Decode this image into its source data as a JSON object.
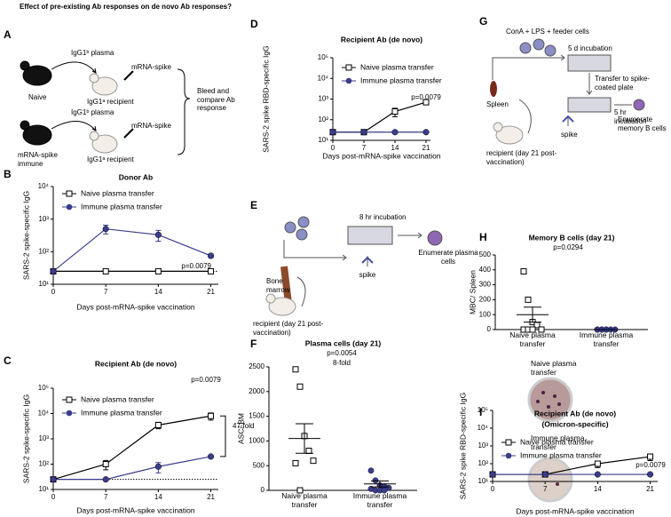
{
  "header": {
    "question": "Effect of pre-existing Ab responses on de novo Ab responses?"
  },
  "panel_labels": [
    "A",
    "B",
    "C",
    "D",
    "E",
    "F",
    "G",
    "H",
    "I"
  ],
  "diagram_a": {
    "labels": [
      "IgG1ᵇ plasma",
      "mRNA-spike",
      "Naive",
      "IgG1ᵃ recipient",
      "IgG1ᵇ plasma",
      "mRNA-spike",
      "mRNA-spike immune",
      "IgG1ᵃ recipient",
      "Bleed and compare Ab response"
    ]
  },
  "diagram_e": {
    "labels": [
      "8 hr incubation",
      "Enumerate plasma cells",
      "Bone marrow",
      "spike",
      "recipient (day 21 post-vaccination)"
    ]
  },
  "diagram_g": {
    "labels": [
      "ConA + LPS + feeder cells",
      "5 d incubation",
      "Transfer to spike-coated plate",
      "5 hr incubation",
      "Spleen",
      "Enumerate memory B cells",
      "spike",
      "recipient (day 21 post-vaccination)"
    ]
  },
  "chart_data": [
    {
      "type": "line",
      "title": "Donor Ab",
      "xlabel": "Days post-mRNA-spike vaccination",
      "ylabel": "SARS-2 spike-specific IgG",
      "log_y": true,
      "x": [
        0,
        7,
        14,
        21
      ],
      "xlim": [
        0,
        22
      ],
      "xticks": [
        0,
        7,
        14,
        21
      ],
      "ylim": [
        10,
        10000
      ],
      "yticks": [
        {
          "value": 10,
          "label": "10¹"
        },
        {
          "value": 100,
          "label": "10²"
        },
        {
          "value": 1000,
          "label": "10³"
        },
        {
          "value": 10000,
          "label": "10⁴"
        }
      ],
      "reference_line": 25,
      "series": [
        {
          "name": "Naive plasma transfer",
          "marker": "square",
          "color": "#000000",
          "values": [
            25,
            25,
            25,
            25
          ],
          "errors": [
            null,
            null,
            null,
            null
          ]
        },
        {
          "name": "Immune plasma transfer",
          "marker": "circle",
          "color": "#3a3c8c",
          "values": [
            25,
            500,
            330,
            75
          ],
          "errors": [
            null,
            150,
            120,
            10
          ]
        }
      ],
      "annotations": [
        "p=0.0079"
      ]
    },
    {
      "type": "line",
      "title": "Recipient Ab (de novo)",
      "xlabel": "Days post-mRNA-spike vaccination",
      "ylabel": "SARS-2 spike-specific IgG",
      "log_y": true,
      "x": [
        0,
        7,
        14,
        21
      ],
      "xlim": [
        0,
        22
      ],
      "xticks": [
        0,
        7,
        14,
        21
      ],
      "ylim": [
        10,
        100000
      ],
      "yticks": [
        {
          "value": 10,
          "label": "10¹"
        },
        {
          "value": 100,
          "label": "10²"
        },
        {
          "value": 1000,
          "label": "10³"
        },
        {
          "value": 10000,
          "label": "10⁴"
        },
        {
          "value": 100000,
          "label": "10⁵"
        }
      ],
      "reference_line": 25,
      "series": [
        {
          "name": "Naive plasma transfer",
          "marker": "square",
          "color": "#000000",
          "values": [
            25,
            100,
            3500,
            8000
          ],
          "errors": [
            null,
            40,
            1000,
            2500
          ]
        },
        {
          "name": "Immune plasma transfer",
          "marker": "circle",
          "color": "#3a3c8c",
          "values": [
            25,
            25,
            80,
            200
          ],
          "errors": [
            null,
            null,
            35,
            20
          ]
        }
      ],
      "annotations": [
        "p=0.0079",
        "47-fold"
      ]
    },
    {
      "type": "line",
      "title": "Recipient Ab (de novo)",
      "xlabel": "Days post-mRNA-spike vaccination",
      "ylabel": "SARS-2 spike RBD-specific IgG",
      "log_y": true,
      "x": [
        0,
        7,
        14,
        21
      ],
      "xlim": [
        0,
        22
      ],
      "xticks": [
        0,
        7,
        14,
        21
      ],
      "ylim": [
        10,
        100000
      ],
      "yticks": [
        {
          "value": 10,
          "label": "10¹"
        },
        {
          "value": 100,
          "label": "10²"
        },
        {
          "value": 1000,
          "label": "10³"
        },
        {
          "value": 10000,
          "label": "10⁴"
        },
        {
          "value": 100000,
          "label": "10⁵"
        }
      ],
      "series": [
        {
          "name": "Naive plasma transfer",
          "marker": "square",
          "color": "#000000",
          "values": [
            25,
            25,
            250,
            700
          ],
          "errors": [
            null,
            null,
            110,
            120
          ]
        },
        {
          "name": "Immune plasma transfer",
          "marker": "circle",
          "color": "#3a3c8c",
          "values": [
            25,
            25,
            25,
            25
          ],
          "errors": [
            null,
            null,
            null,
            null
          ]
        }
      ],
      "annotations": [
        "p=0.0079"
      ]
    },
    {
      "type": "strip",
      "title": "Plasma cells (day 21)",
      "ylabel": "ASC/ BM",
      "categories": [
        "Naive plasma transfer",
        "Immune plasma transfer"
      ],
      "ylim": [
        0,
        2500
      ],
      "yticks": [
        0,
        500,
        1000,
        1500,
        2000,
        2500
      ],
      "series": [
        {
          "marker": "square",
          "color": "#000000",
          "values": [
            2450,
            2100,
            1100,
            800,
            600,
            550,
            0
          ],
          "mean": 1050,
          "sem": 300
        },
        {
          "marker": "circle",
          "color": "#3a3c8c",
          "values": [
            400,
            200,
            100,
            80,
            50,
            30,
            0,
            0,
            0
          ],
          "mean": 130,
          "sem": 60
        }
      ],
      "annotations": [
        "p=0.0054",
        "8-fold"
      ],
      "photo_labels": [
        "Naive plasma transfer",
        "Immune plasma transfer"
      ]
    },
    {
      "type": "strip",
      "title": "Memory B cells (day 21)",
      "ylabel": "MBC/ Spleen",
      "categories": [
        "Naive plasma transfer",
        "Immune plasma transfer"
      ],
      "ylim": [
        0,
        500
      ],
      "yticks": [
        0,
        100,
        200,
        300,
        400,
        500
      ],
      "series": [
        {
          "marker": "square",
          "color": "#000000",
          "values": [
            390,
            200,
            50,
            30,
            0,
            0,
            0,
            0
          ],
          "mean": 100,
          "sem": 50
        },
        {
          "marker": "circle",
          "color": "#3a3c8c",
          "values": [
            0,
            0,
            0,
            0,
            0,
            0,
            0,
            0
          ],
          "mean": 0,
          "sem": 0
        }
      ],
      "annotations": [
        "p=0.0294"
      ]
    },
    {
      "type": "line",
      "title": "Recipient Ab (de novo)",
      "subtitle": "(Omicron-specific)",
      "xlabel": "Days post-mRNA-spike vaccination",
      "ylabel": "SARS-2 spike RBD-specific IgG",
      "log_y": true,
      "x": [
        0,
        7,
        14,
        21
      ],
      "xlim": [
        0,
        22
      ],
      "xticks": [
        0,
        7,
        14,
        21
      ],
      "ylim": [
        10,
        100000
      ],
      "yticks": [
        {
          "value": 10,
          "label": "10¹"
        },
        {
          "value": 100,
          "label": "10²"
        },
        {
          "value": 1000,
          "label": "10³"
        },
        {
          "value": 10000,
          "label": "10⁴"
        },
        {
          "value": 100000,
          "label": "10⁵"
        }
      ],
      "series": [
        {
          "name": "Naive plasma transfer",
          "marker": "square",
          "color": "#000000",
          "values": [
            25,
            25,
            100,
            250
          ],
          "errors": [
            null,
            null,
            40,
            100
          ]
        },
        {
          "name": "Immune plasma transfer",
          "marker": "circle",
          "color": "#3a3c8c",
          "values": [
            25,
            25,
            25,
            25
          ],
          "errors": [
            null,
            null,
            null,
            null
          ]
        }
      ],
      "annotations": [
        "p=0.0079"
      ]
    }
  ]
}
